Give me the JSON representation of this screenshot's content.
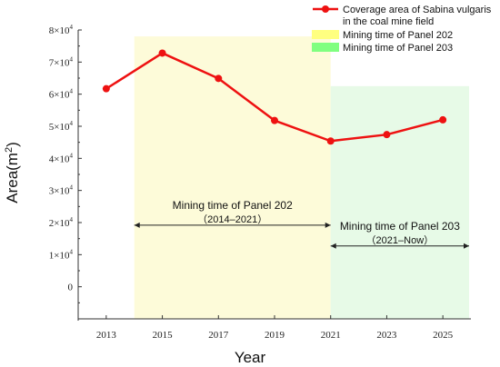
{
  "chart_data": {
    "type": "line",
    "xlabel": "Year",
    "ylabel": "Area(m²)",
    "ylabel_main": "Area(m",
    "ylabel_sup": "2",
    "ylabel_close": ")",
    "xlim": [
      2012,
      2026
    ],
    "ylim": [
      -10000,
      80000
    ],
    "x_ticks": [
      "2013",
      "2015",
      "2017",
      "2019",
      "2021",
      "2023",
      "2025"
    ],
    "y_ticks": [
      {
        "value": 80000,
        "coef": "8",
        "label": "8×10⁴"
      },
      {
        "value": 70000,
        "coef": "7",
        "label": "7×10⁴"
      },
      {
        "value": 60000,
        "coef": "6",
        "label": "6×10⁴"
      },
      {
        "value": 50000,
        "coef": "5",
        "label": "5×10⁴"
      },
      {
        "value": 40000,
        "coef": "4",
        "label": "4×10⁴"
      },
      {
        "value": 30000,
        "coef": "3",
        "label": "3×10⁴"
      },
      {
        "value": 20000,
        "coef": "2",
        "label": "2×10⁴"
      },
      {
        "value": 10000,
        "coef": "1",
        "label": "1×10⁴"
      },
      {
        "value": 0,
        "coef": "0",
        "label": "0"
      }
    ],
    "y_tick_mult": "×10",
    "y_tick_exp": "4",
    "series": [
      {
        "name": "Coverage area of Sabina vulgaris in the coal mine field",
        "color": "#ee1111",
        "x": [
          2013,
          2015,
          2017,
          2019,
          2021,
          2023,
          2025
        ],
        "values": [
          61700,
          72800,
          64900,
          51800,
          45400,
          47400,
          52000
        ]
      }
    ],
    "regions": [
      {
        "name": "Mining time of Panel 202",
        "x_start": 2014,
        "x_end": 2021,
        "y_top": 78000,
        "color": "#fdfbd9"
      },
      {
        "name": "Mining time of Panel 203",
        "x_start": 2021,
        "x_end": 2026.2,
        "y_top": 62500,
        "color": "#e7fae7"
      }
    ],
    "annotations": [
      {
        "line1": "Mining time of Panel 202",
        "line2": "（2014–2021）",
        "x_start": 2014,
        "x_end": 2021,
        "y": 19200
      },
      {
        "line1": "Mining time of Panel 203",
        "line2": "（2021–Now）",
        "x_start": 2021,
        "x_end": 2026.2,
        "y": 12700
      }
    ],
    "legend": {
      "position": "top-right",
      "line_label_1": "Coverage area of Sabina vulgaris",
      "line_label_2": "in the coal mine field",
      "swatches": [
        {
          "label": "Mining time of Panel 202",
          "color": "#ffff80"
        },
        {
          "label": "Mining time of Panel 203",
          "color": "#80ff80"
        }
      ]
    }
  }
}
